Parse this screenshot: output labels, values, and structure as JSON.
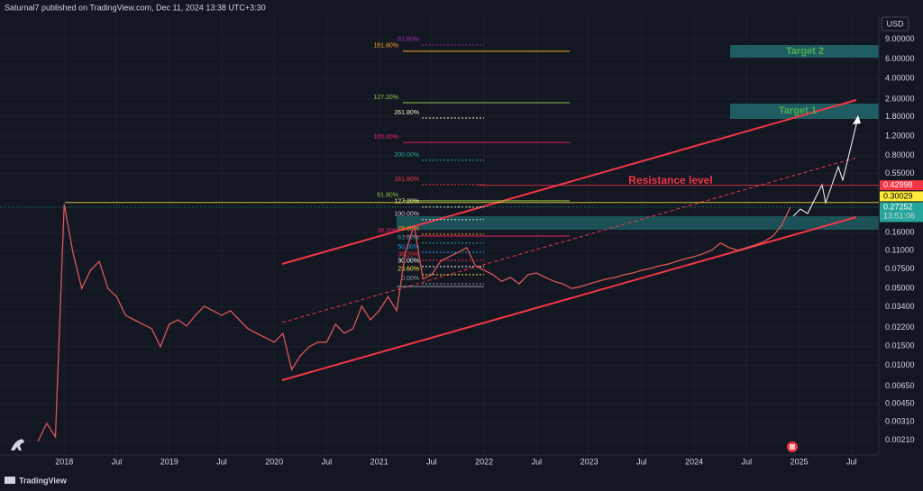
{
  "header": {
    "text": "Saturnal7 published on TradingView.com, Dec 11, 2024 13:38 UTC+3:30"
  },
  "footer": {
    "brand": "TradingView"
  },
  "chart_data": {
    "type": "line",
    "currency": "USD",
    "log_scale": true,
    "grid": true,
    "x": [
      "2017-10",
      "2017-11",
      "2017-12",
      "2018-01",
      "2018-02",
      "2018-03",
      "2018-04",
      "2018-05",
      "2018-06",
      "2018-07",
      "2018-08",
      "2018-09",
      "2018-10",
      "2018-11",
      "2018-12",
      "2019-01",
      "2019-02",
      "2019-03",
      "2019-04",
      "2019-05",
      "2019-06",
      "2019-07",
      "2019-08",
      "2019-09",
      "2019-10",
      "2019-11",
      "2019-12",
      "2020-01",
      "2020-02",
      "2020-03",
      "2020-04",
      "2020-05",
      "2020-06",
      "2020-07",
      "2020-08",
      "2020-09",
      "2020-10",
      "2020-11",
      "2020-12",
      "2021-01",
      "2021-02",
      "2021-03",
      "2021-04",
      "2021-05",
      "2021-06",
      "2021-07",
      "2021-08",
      "2021-09",
      "2021-10",
      "2021-11",
      "2021-12",
      "2022-01",
      "2022-02",
      "2022-03",
      "2022-04",
      "2022-05",
      "2022-06",
      "2022-07",
      "2022-08",
      "2022-09",
      "2022-10",
      "2022-11",
      "2022-12",
      "2023-01",
      "2023-02",
      "2023-03",
      "2023-04",
      "2023-05",
      "2023-06",
      "2023-07",
      "2023-08",
      "2023-09",
      "2023-10",
      "2023-11",
      "2023-12",
      "2024-01",
      "2024-02",
      "2024-03",
      "2024-04",
      "2024-05",
      "2024-06",
      "2024-07",
      "2024-08",
      "2024-09",
      "2024-10",
      "2024-11",
      "2024-12"
    ],
    "series": [
      {
        "color": "#d9575a",
        "values": [
          0.00206,
          0.003,
          0.00226,
          0.29,
          0.106,
          0.05,
          0.073,
          0.088,
          0.05,
          0.042,
          0.0286,
          0.026,
          0.0237,
          0.0216,
          0.0148,
          0.0237,
          0.026,
          0.0228,
          0.0286,
          0.0345,
          0.0314,
          0.0286,
          0.0314,
          0.026,
          0.0216,
          0.0196,
          0.0179,
          0.0163,
          0.0196,
          0.0092,
          0.0123,
          0.0148,
          0.0163,
          0.0163,
          0.0237,
          0.0196,
          0.0216,
          0.0345,
          0.026,
          0.0314,
          0.042,
          0.0314,
          0.106,
          0.187,
          0.061,
          0.0666,
          0.088,
          0.097,
          0.106,
          0.117,
          0.08,
          0.073,
          0.0666,
          0.058,
          0.063,
          0.055,
          0.0666,
          0.069,
          0.063,
          0.058,
          0.055,
          0.05,
          0.052,
          0.055,
          0.058,
          0.061,
          0.063,
          0.0666,
          0.069,
          0.073,
          0.076,
          0.08,
          0.083,
          0.088,
          0.093,
          0.097,
          0.103,
          0.111,
          0.129,
          0.117,
          0.111,
          0.117,
          0.124,
          0.133,
          0.149,
          0.187,
          0.27252
        ]
      }
    ],
    "xlim": [
      "2017-07",
      "2025-10"
    ],
    "xticks": [
      {
        "value": "2018-01",
        "label": "2018"
      },
      {
        "value": "2018-07",
        "label": "Jul"
      },
      {
        "value": "2019-01",
        "label": "2019"
      },
      {
        "value": "2019-07",
        "label": "Jul"
      },
      {
        "value": "2020-01",
        "label": "2020"
      },
      {
        "value": "2020-07",
        "label": "Jul"
      },
      {
        "value": "2021-01",
        "label": "2021"
      },
      {
        "value": "2021-07",
        "label": "Jul"
      },
      {
        "value": "2022-01",
        "label": "2022"
      },
      {
        "value": "2022-07",
        "label": "Jul"
      },
      {
        "value": "2023-01",
        "label": "2023"
      },
      {
        "value": "2023-07",
        "label": "Jul"
      },
      {
        "value": "2024-01",
        "label": "2024"
      },
      {
        "value": "2024-07",
        "label": "Jul"
      },
      {
        "value": "2025-01",
        "label": "2025"
      },
      {
        "value": "2025-07",
        "label": "Jul"
      }
    ],
    "ylim": [
      0.00155,
      14.9
    ],
    "yticks": [
      {
        "value": 9,
        "label": "9.00000"
      },
      {
        "value": 6,
        "label": "6.00000"
      },
      {
        "value": 4,
        "label": "4.00000"
      },
      {
        "value": 2.6,
        "label": "2.60000"
      },
      {
        "value": 1.8,
        "label": "1.80000"
      },
      {
        "value": 1.2,
        "label": "1.20000"
      },
      {
        "value": 0.8,
        "label": "0.80000"
      },
      {
        "value": 0.55,
        "label": "0.55000"
      },
      {
        "value": 0.16,
        "label": "0.16000"
      },
      {
        "value": 0.11,
        "label": "0.11000"
      },
      {
        "value": 0.075,
        "label": "0.07500"
      },
      {
        "value": 0.05,
        "label": "0.05000"
      },
      {
        "value": 0.034,
        "label": "0.03400"
      },
      {
        "value": 0.022,
        "label": "0.02200"
      },
      {
        "value": 0.015,
        "label": "0.01500"
      },
      {
        "value": 0.01,
        "label": "0.01000"
      },
      {
        "value": 0.0065,
        "label": "0.00650"
      },
      {
        "value": 0.0045,
        "label": "0.00450"
      },
      {
        "value": 0.0031,
        "label": "0.00310"
      },
      {
        "value": 0.0021,
        "label": "0.00210"
      }
    ],
    "price_labels": [
      {
        "value": 0.27252,
        "color": "#26a69a",
        "text_color": "#ffffff"
      },
      {
        "value": 0.30029,
        "color": "#ffeb3b",
        "text_color": "#000000"
      },
      {
        "value": 0.42998,
        "color": "#f23645",
        "text_color": "#ffffff"
      }
    ],
    "countdown": "13:51:06",
    "annotations": {
      "target_1": "Target 1",
      "target_2": "Target 2",
      "resistance": "Resistance level"
    },
    "fib_sets": [
      {
        "style": "solid",
        "levels": [
          {
            "label": "161.80%",
            "price": 7.05,
            "color": "#f5a623"
          },
          {
            "label": "127.20%",
            "price": 2.41,
            "color": "#8bc34a"
          },
          {
            "label": "100.00%",
            "price": 1.05,
            "color": "#e91e63"
          },
          {
            "label": "61.80%",
            "price": 0.311,
            "color": "#8bc34a"
          },
          {
            "label": "38.20%",
            "price": 0.149,
            "color": "#e91e63"
          }
        ]
      },
      {
        "style": "dotted",
        "levels": [
          {
            "label": "61.80%",
            "price": 8.04,
            "color": "#9c27b0"
          },
          {
            "label": "261.80%",
            "price": 1.75,
            "color": "#f0f0c0"
          },
          {
            "label": "200.00%",
            "price": 0.724,
            "color": "#26a69a"
          },
          {
            "label": "161.80%",
            "price": 0.436,
            "color": "#f23645"
          },
          {
            "label": "127.20%",
            "price": 0.273,
            "color": "#f0f0a0"
          },
          {
            "label": "100.00%",
            "price": 0.21,
            "color": "#d1d4dc"
          },
          {
            "label": "78.60%",
            "price": 0.155,
            "color": "#ff9800"
          },
          {
            "label": "61.80%",
            "price": 0.129,
            "color": "#26a69a"
          },
          {
            "label": "50.00%",
            "price": 0.106,
            "color": "#2196f3"
          },
          {
            "label": "38.20%",
            "price": 0.09,
            "color": "#f23645"
          },
          {
            "label": "30.00%",
            "price": 0.079,
            "color": "#ffffff"
          },
          {
            "label": "23.60%",
            "price": 0.0666,
            "color": "#ffeb3b"
          },
          {
            "label": "0.00%",
            "price": 0.0551,
            "color": "#9598a1"
          }
        ]
      }
    ]
  }
}
